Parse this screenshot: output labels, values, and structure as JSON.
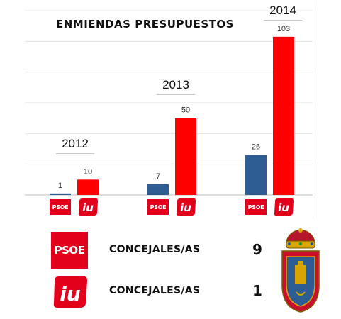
{
  "chart_data": {
    "type": "bar",
    "title": "ENMIENDAS PRESUPUESTOS",
    "categories": [
      "2012",
      "2013",
      "2014"
    ],
    "series": [
      {
        "name": "PSOE",
        "color": "#2e5d93",
        "values": [
          1,
          7,
          26
        ]
      },
      {
        "name": "IU",
        "color": "#ff0000",
        "values": [
          10,
          50,
          103
        ]
      }
    ],
    "ylim": [
      0,
      120
    ],
    "grid": true,
    "legend": "party logos below each bar"
  },
  "logos": {
    "psoe_text": "PSOE",
    "iu_text": "iu",
    "psoe_color": "#e3001b",
    "iu_color": "#e3001b"
  },
  "councillors": [
    {
      "party": "PSOE",
      "label": "CONCEJALES/AS",
      "count": "9"
    },
    {
      "party": "IU",
      "label": "CONCEJALES/AS",
      "count": "1"
    }
  ],
  "emblem": {
    "icon": "coat-of-arms-icon"
  }
}
